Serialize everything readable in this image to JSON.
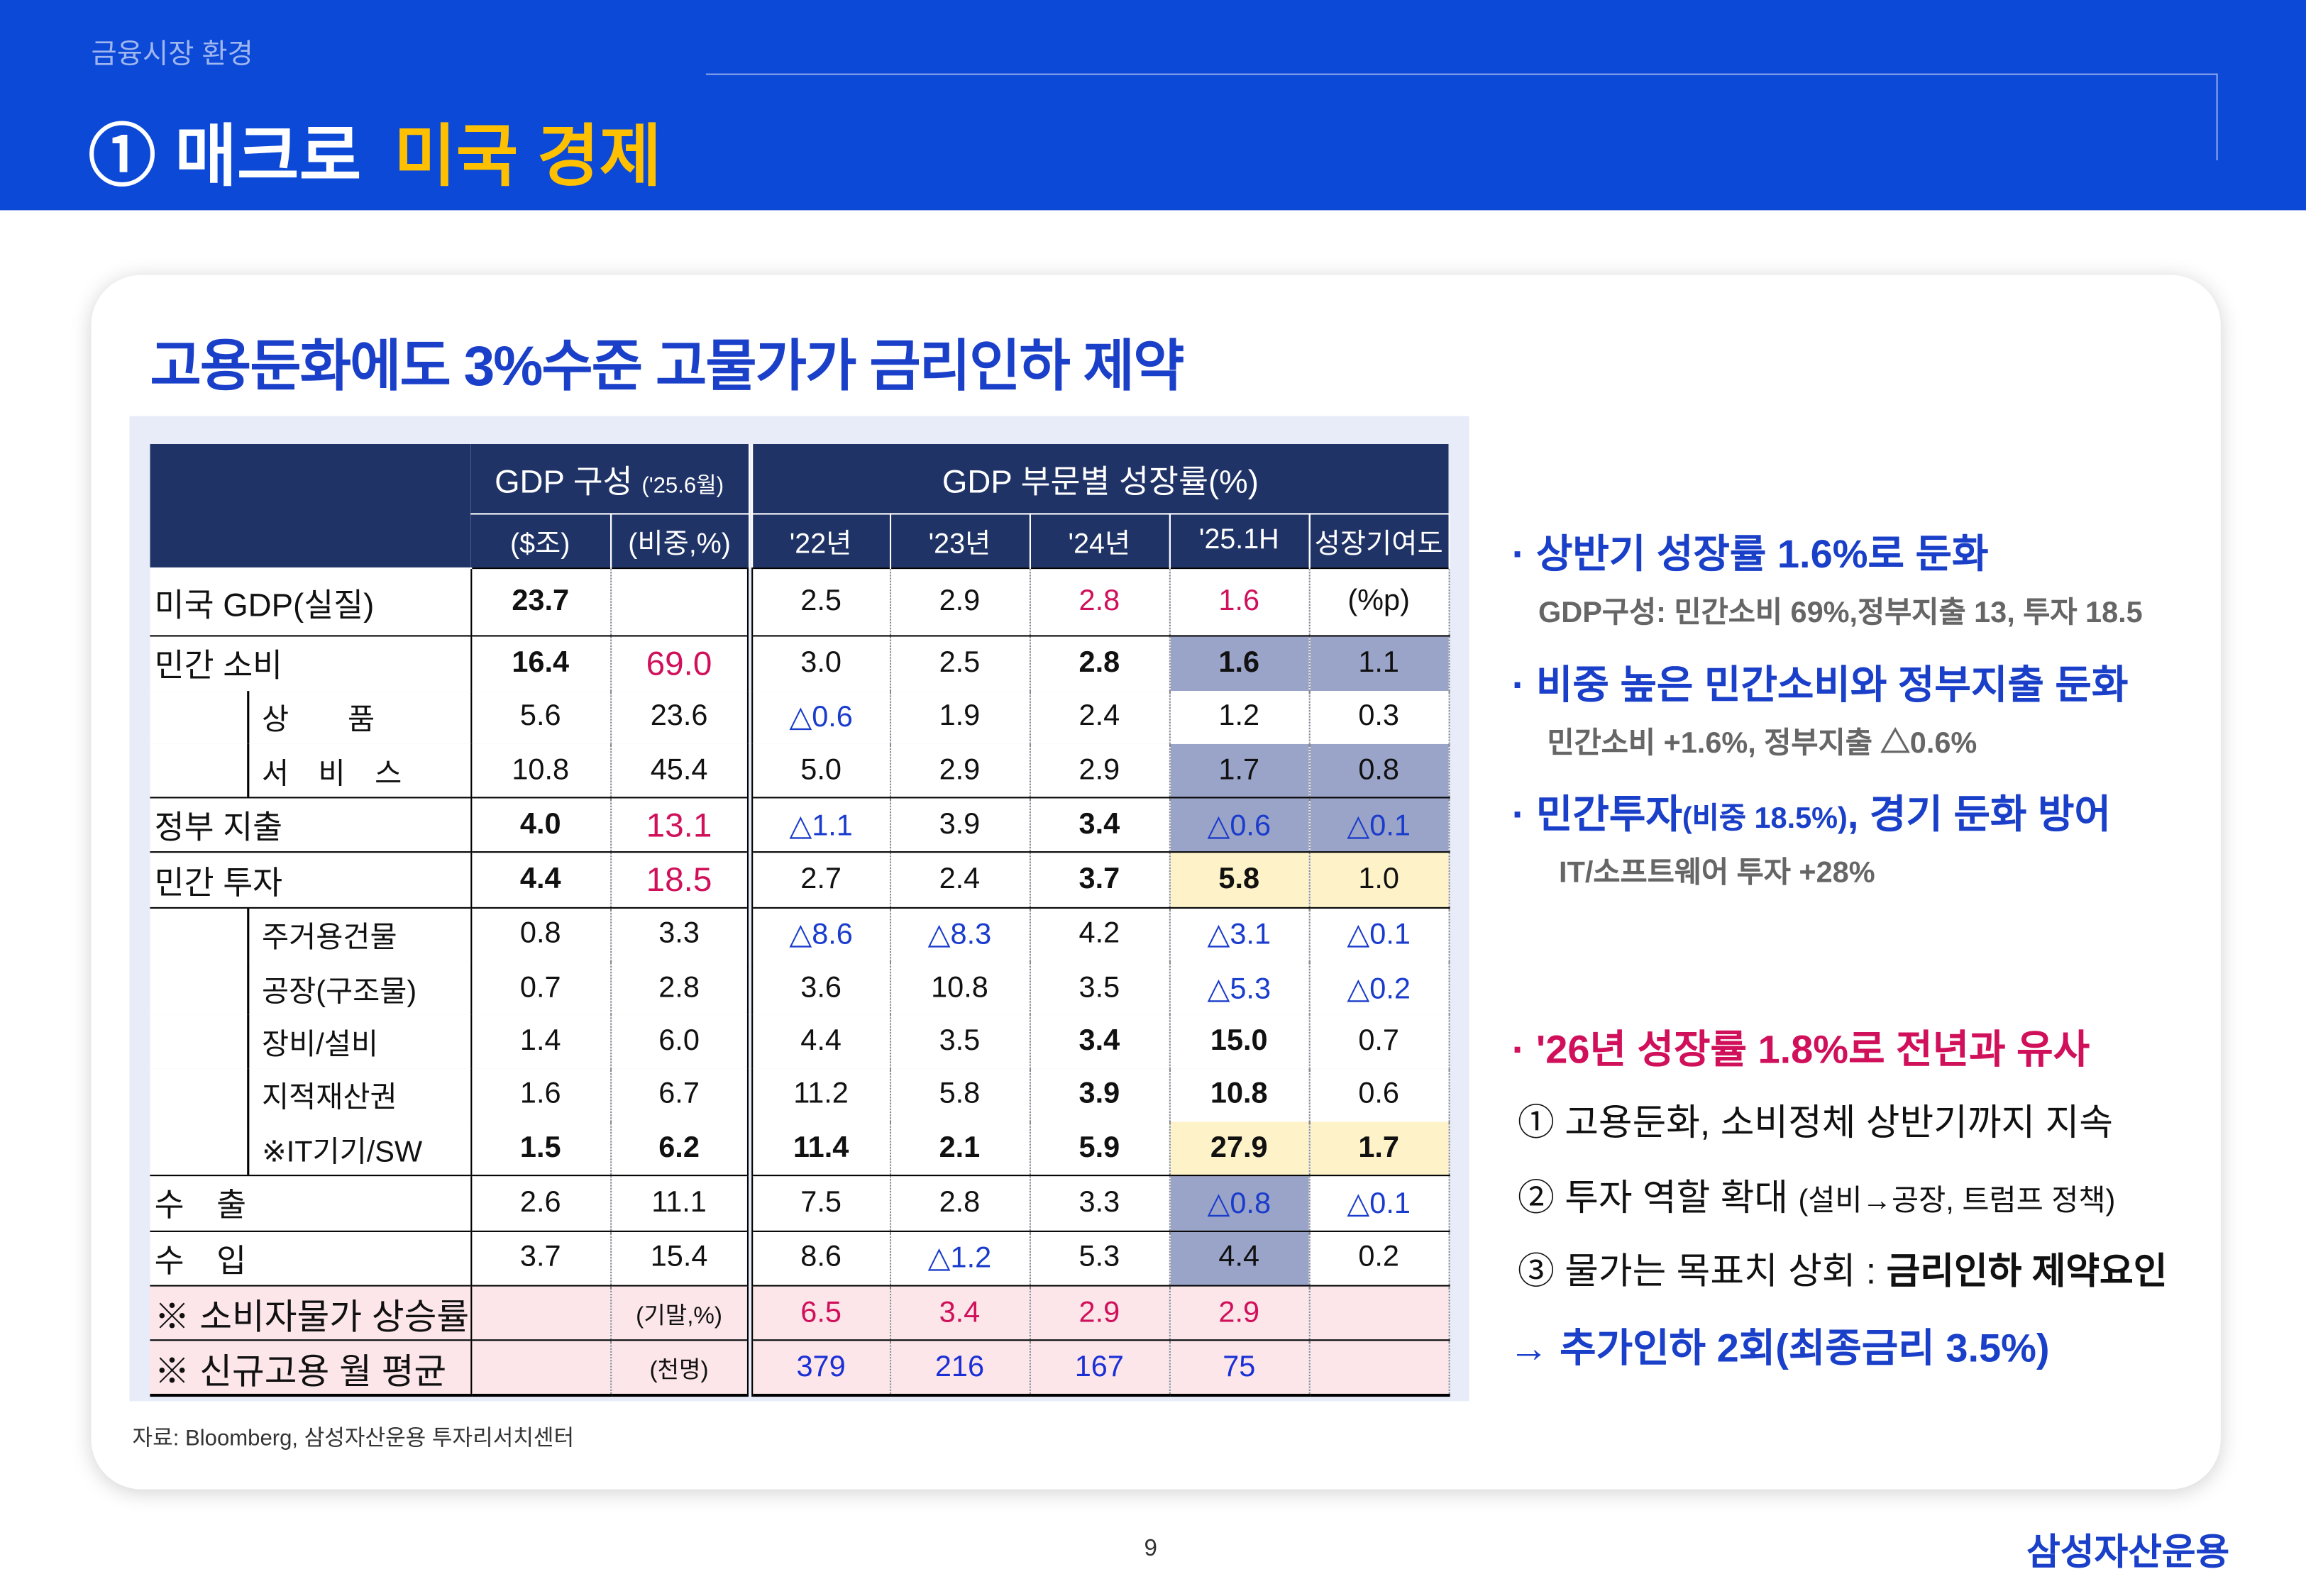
{
  "header": {
    "section": "금융시장 환경",
    "title_main": "① 매크로",
    "title_sub": "미국 경제"
  },
  "card": {
    "title": "고용둔화에도 3%수준 고물가가 금리인하 제약"
  },
  "table": {
    "group_headers": [
      "GDP 구성",
      "('25.6월)",
      "GDP 부문별 성장률(%)"
    ],
    "sub_headers": [
      "($조)",
      "(비중,%)",
      "'22년",
      "'23년",
      "'24년",
      "'25.1H",
      "성장기여도"
    ],
    "rows": [
      [
        "미국 GDP(실질)",
        "23.7",
        null,
        "2.5",
        "2.9",
        "2.8",
        "1.6",
        "(%p)"
      ],
      [
        "민간 소비",
        "16.4",
        "69.0",
        "3.0",
        "2.5",
        "2.8",
        "1.6",
        "1.1"
      ],
      [
        "상　　품",
        "5.6",
        "23.6",
        "△0.6",
        "1.9",
        "2.4",
        "1.2",
        "0.3"
      ],
      [
        "서　비　스",
        "10.8",
        "45.4",
        "5.0",
        "2.9",
        "2.9",
        "1.7",
        "0.8"
      ],
      [
        "정부 지출",
        "4.0",
        "13.1",
        "△1.1",
        "3.9",
        "3.4",
        "△0.6",
        "△0.1"
      ],
      [
        "민간 투자",
        "4.4",
        "18.5",
        "2.7",
        "2.4",
        "3.7",
        "5.8",
        "1.0"
      ],
      [
        "주거용건물",
        "0.8",
        "3.3",
        "△8.6",
        "△8.3",
        "4.2",
        "△3.1",
        "△0.1"
      ],
      [
        "공장(구조물)",
        "0.7",
        "2.8",
        "3.6",
        "10.8",
        "3.5",
        "△5.3",
        "△0.2"
      ],
      [
        "장비/설비",
        "1.4",
        "6.0",
        "4.4",
        "3.5",
        "3.4",
        "15.0",
        "0.7"
      ],
      [
        "지적재산권",
        "1.6",
        "6.7",
        "11.2",
        "5.8",
        "3.9",
        "10.8",
        "0.6"
      ],
      [
        "※IT기기/SW",
        "1.5",
        "6.2",
        "11.4",
        "2.1",
        "5.9",
        "27.9",
        "1.7"
      ],
      [
        "수　출",
        "2.6",
        "11.1",
        "7.5",
        "2.8",
        "3.3",
        "△0.8",
        "△0.1"
      ],
      [
        "수　입",
        "3.7",
        "15.4",
        "8.6",
        "△1.2",
        "5.3",
        "4.4",
        "0.2"
      ],
      [
        "※ 소비자물가 상승률",
        null,
        "(기말,%)",
        "6.5",
        "3.4",
        "2.9",
        "2.9",
        null
      ],
      [
        "※ 신규고용 월 평균",
        null,
        "(천명)",
        "379",
        "216",
        "167",
        "75",
        null
      ]
    ]
  },
  "bullets": {
    "b1": "· 상반기 성장률 1.6%로 둔화",
    "b1_sub": "GDP구성: 민간소비 69%,정부지출 13, 투자 18.5",
    "b2": "· 비중 높은 민간소비와 정부지출 둔화",
    "b2_sub": "민간소비 +1.6%, 정부지출 △0.6%",
    "b3_a": "· 민간투자",
    "b3_b": "(비중 18.5%)",
    "b3_c": ", 경기 둔화 방어",
    "b3_sub": "IT/소프트웨어 투자 +28%",
    "b4": "· '26년 성장률 1.8%로 전년과 유사",
    "p1": "① 고용둔화, 소비정체 상반기까지 지속",
    "p2_a": "② 투자 역할 확대 ",
    "p2_b": "(설비→공장, 트럼프 정책)",
    "p3_a": "③ 물가는 목표치 상회 : ",
    "p3_b": "금리인하 제약요인",
    "p4": "→ 추가인하 2회(최종금리 3.5%)"
  },
  "footer": {
    "source": "자료: Bloomberg, 삼성자산운용 투자리서치센터",
    "page": "9",
    "logo": "삼성자산운용"
  }
}
